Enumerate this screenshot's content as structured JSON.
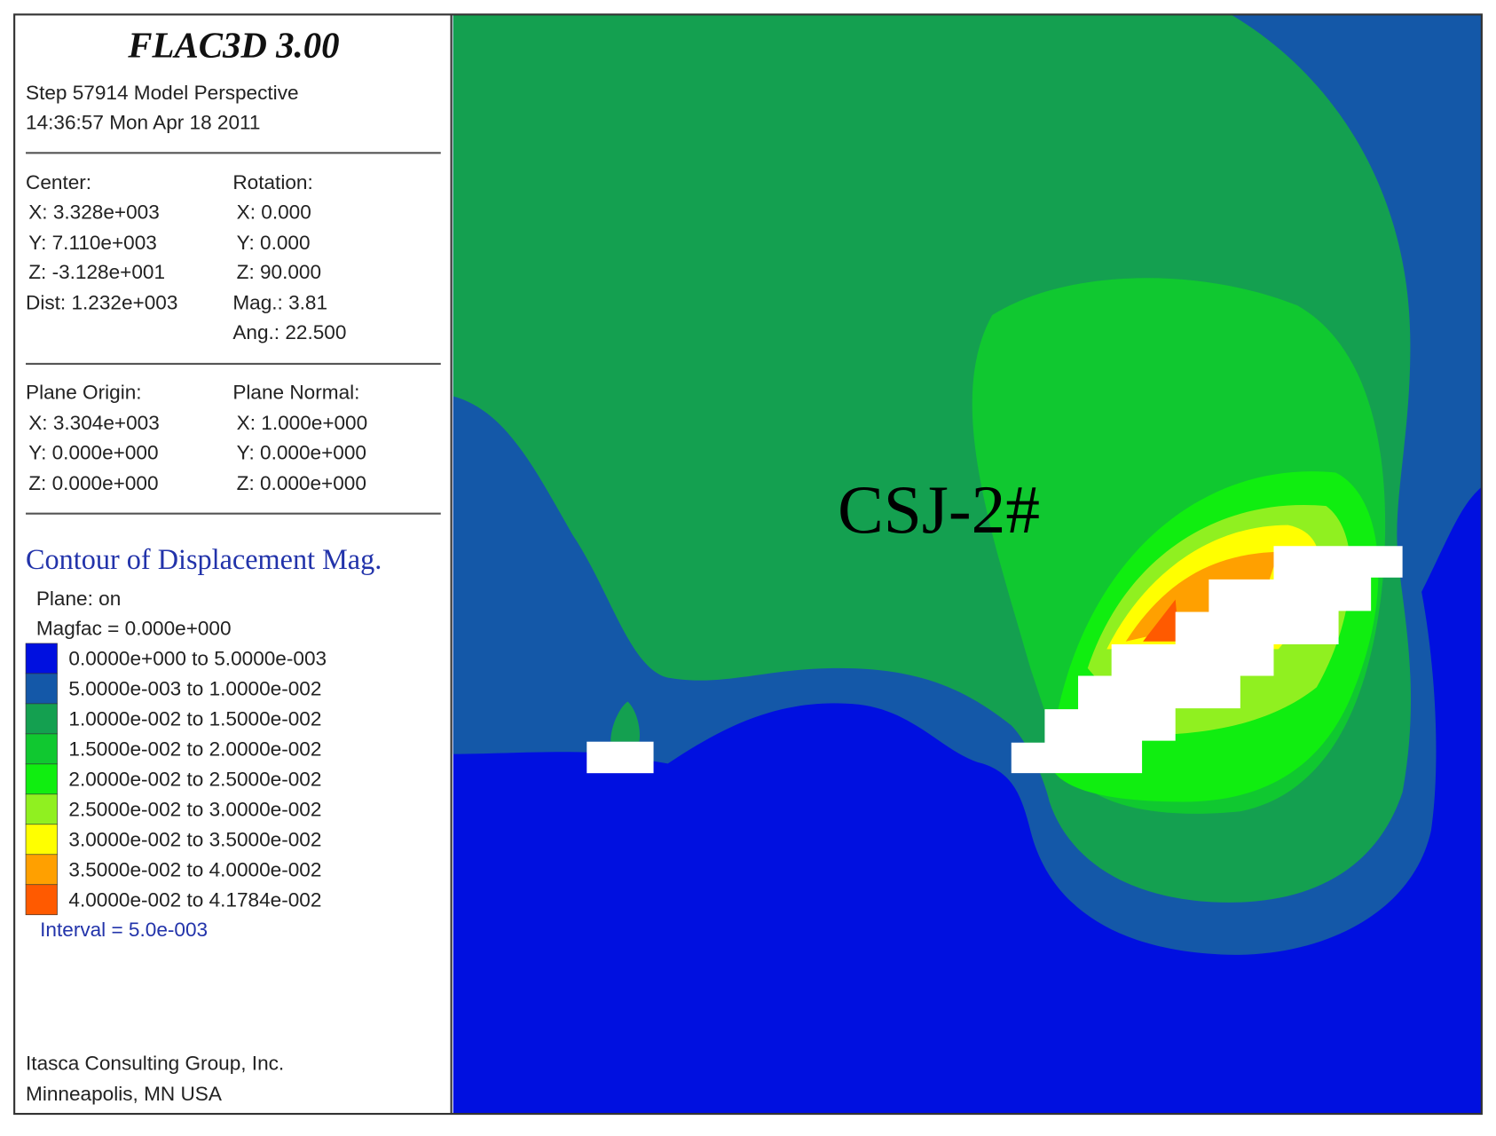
{
  "header": {
    "title": "FLAC3D 3.00",
    "lines": [
      "Step 57914  Model Perspective",
      "14:36:57 Mon Apr 18 2011"
    ]
  },
  "view": {
    "center": {
      "label": "Center:",
      "lines": [
        "X: 3.328e+003",
        "Y: 7.110e+003",
        "Z: -3.128e+001"
      ]
    },
    "dist": "Dist: 1.232e+003",
    "rotation": {
      "label": "Rotation:",
      "lines": [
        "X:   0.000",
        "Y:   0.000",
        "Z:  90.000"
      ]
    },
    "mag": "Mag.:     3.81",
    "ang": "Ang.:  22.500"
  },
  "plane": {
    "origin": {
      "label": "Plane Origin:",
      "lines": [
        "X: 3.304e+003",
        "Y: 0.000e+000",
        "Z: 0.000e+000"
      ]
    },
    "normal": {
      "label": "Plane Normal:",
      "lines": [
        "X: 1.000e+000",
        "Y: 0.000e+000",
        "Z: 0.000e+000"
      ]
    }
  },
  "contour": {
    "title": "Contour of Displacement Mag.",
    "plane": "Plane: on",
    "magfac": "Magfac =  0.000e+000",
    "legend": [
      {
        "label": "0.0000e+000 to  5.0000e-003",
        "color": "#0010e0"
      },
      {
        "label": "5.0000e-003 to  1.0000e-002",
        "color": "#1458a8"
      },
      {
        "label": "1.0000e-002 to  1.5000e-002",
        "color": "#14a050"
      },
      {
        "label": "1.5000e-002 to  2.0000e-002",
        "color": "#10c830"
      },
      {
        "label": "2.0000e-002 to  2.5000e-002",
        "color": "#10ee10"
      },
      {
        "label": "2.5000e-002 to  3.0000e-002",
        "color": "#90f020"
      },
      {
        "label": "3.0000e-002 to  3.5000e-002",
        "color": "#ffff00"
      },
      {
        "label": "3.5000e-002 to  4.0000e-002",
        "color": "#ffa000"
      },
      {
        "label": "4.0000e-002 to  4.1784e-002",
        "color": "#ff5a00"
      }
    ],
    "interval": "Interval =  5.0e-003"
  },
  "footer": [
    "Itasca Consulting Group, Inc.",
    "Minneapolis, MN  USA"
  ],
  "annotation": "CSJ-2#"
}
